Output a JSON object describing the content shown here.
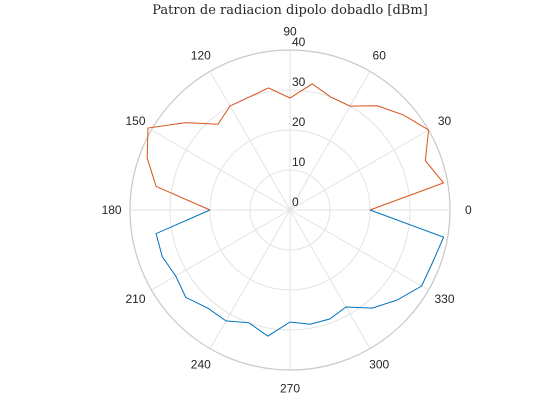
{
  "chart_data": {
    "type": "polar-line",
    "title": "Patron de radiacion dipolo dobadlo [dBm]",
    "rlim": [
      0,
      40
    ],
    "r_ticks": [
      0,
      10,
      20,
      30,
      40
    ],
    "r_tick_labels": [
      "0",
      "10",
      "20",
      "30",
      "40"
    ],
    "theta_ticks_deg": [
      0,
      30,
      60,
      90,
      120,
      150,
      180,
      210,
      240,
      270,
      300,
      330
    ],
    "theta_tick_labels": [
      "0",
      "30",
      "60",
      "90",
      "120",
      "150",
      "180",
      "210",
      "240",
      "270",
      "300",
      "330"
    ],
    "grid": true,
    "series": [
      {
        "color": "#D95319",
        "theta_deg": [
          0,
          10,
          20,
          30,
          40,
          50,
          60,
          70,
          80,
          90,
          100,
          110,
          120,
          130,
          140,
          150,
          160,
          170,
          180
        ],
        "r": [
          20,
          39,
          36,
          40,
          37,
          34,
          30,
          30,
          32,
          28,
          31,
          30,
          30,
          28,
          34,
          41,
          38,
          34,
          20
        ]
      },
      {
        "color": "#0072BD",
        "theta_deg": [
          180,
          190,
          200,
          210,
          220,
          230,
          240,
          250,
          260,
          270,
          280,
          290,
          300,
          310,
          320,
          330,
          340,
          350,
          360
        ],
        "r": [
          20,
          34,
          34,
          33,
          34,
          32,
          32,
          30,
          32,
          28,
          29,
          29,
          28,
          32,
          35,
          38,
          38,
          39,
          20
        ]
      }
    ]
  }
}
